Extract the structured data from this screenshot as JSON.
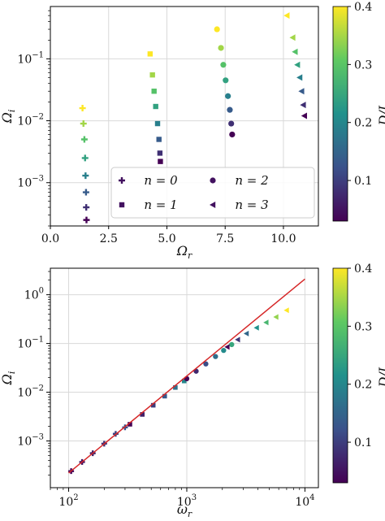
{
  "chart_data": [
    {
      "type": "scatter",
      "xlabel": "Ω_r",
      "ylabel": "Ω_i",
      "xlim": [
        0,
        11.5
      ],
      "ylim": [
        0.0002,
        0.7
      ],
      "yscale": "log",
      "grid": true,
      "x_ticks": [
        "0.0",
        "2.5",
        "5.0",
        "7.5",
        "10.0"
      ],
      "y_ticks": [
        {
          "base": "10",
          "exp": "−1",
          "value": 0.1
        },
        {
          "base": "10",
          "exp": "−2",
          "value": 0.01
        },
        {
          "base": "10",
          "exp": "−3",
          "value": 0.001
        }
      ],
      "legend": {
        "position": "lower-right",
        "entries": [
          {
            "label": "n = 0",
            "marker": "plus"
          },
          {
            "label": "n = 1",
            "marker": "square"
          },
          {
            "label": "n = 2",
            "marker": "circle"
          },
          {
            "label": "n = 3",
            "marker": "triangle-left"
          }
        ]
      },
      "colorbar": {
        "label": "D/L",
        "range": [
          0.03,
          0.4
        ],
        "ticks": [
          "0.1",
          "0.2",
          "0.3",
          "0.4"
        ],
        "colormap": "viridis"
      },
      "series": [
        {
          "name": "n = 0",
          "marker": "plus",
          "D_range": [
            0.03,
            0.4
          ],
          "points": [
            [
              1.55,
              0.00025
            ],
            [
              1.54,
              0.0004
            ],
            [
              1.53,
              0.0007
            ],
            [
              1.51,
              0.0013
            ],
            [
              1.49,
              0.0025
            ],
            [
              1.46,
              0.005
            ],
            [
              1.42,
              0.009
            ],
            [
              1.38,
              0.016
            ]
          ]
        },
        {
          "name": "n = 1",
          "marker": "square",
          "D_range": [
            0.03,
            0.4
          ],
          "points": [
            [
              4.72,
              0.0022
            ],
            [
              4.7,
              0.003
            ],
            [
              4.66,
              0.005
            ],
            [
              4.6,
              0.009
            ],
            [
              4.52,
              0.017
            ],
            [
              4.45,
              0.03
            ],
            [
              4.38,
              0.055
            ],
            [
              4.28,
              0.12
            ]
          ]
        },
        {
          "name": "n = 2",
          "marker": "circle",
          "D_range": [
            0.03,
            0.4
          ],
          "points": [
            [
              7.8,
              0.006
            ],
            [
              7.76,
              0.009
            ],
            [
              7.7,
              0.015
            ],
            [
              7.62,
              0.025
            ],
            [
              7.52,
              0.045
            ],
            [
              7.42,
              0.08
            ],
            [
              7.32,
              0.15
            ],
            [
              7.15,
              0.3
            ]
          ]
        },
        {
          "name": "n = 3",
          "marker": "triangle-left",
          "D_range": [
            0.03,
            0.4
          ],
          "points": [
            [
              10.9,
              0.012
            ],
            [
              10.85,
              0.018
            ],
            [
              10.78,
              0.03
            ],
            [
              10.7,
              0.05
            ],
            [
              10.6,
              0.08
            ],
            [
              10.5,
              0.13
            ],
            [
              10.4,
              0.22
            ],
            [
              10.15,
              0.5
            ]
          ]
        }
      ]
    },
    {
      "type": "scatter",
      "xlabel": "ω_r",
      "ylabel": "Ω_i",
      "xscale": "log",
      "yscale": "log",
      "xlim": [
        70,
        13000
      ],
      "ylim": [
        0.00011,
        3.5
      ],
      "grid": true,
      "x_ticks": [
        {
          "base": "10",
          "exp": "2",
          "value": 100
        },
        {
          "base": "10",
          "exp": "3",
          "value": 1000
        },
        {
          "base": "10",
          "exp": "4",
          "value": 10000
        }
      ],
      "y_ticks": [
        {
          "base": "10",
          "exp": "0",
          "value": 1
        },
        {
          "base": "10",
          "exp": "−1",
          "value": 0.1
        },
        {
          "base": "10",
          "exp": "−2",
          "value": 0.01
        },
        {
          "base": "10",
          "exp": "−3",
          "value": 0.001
        }
      ],
      "colorbar": {
        "label": "D/L",
        "range": [
          0.03,
          0.4
        ],
        "ticks": [
          "0.1",
          "0.2",
          "0.3",
          "0.4"
        ],
        "colormap": "viridis"
      },
      "fit_line": {
        "color": "#d62728",
        "points": [
          [
            100,
            0.00022
          ],
          [
            10000,
            2.1
          ]
        ]
      },
      "series": [
        {
          "name": "n = 0",
          "marker": "plus",
          "D_range": [
            0.03,
            0.12
          ],
          "points": [
            [
              105,
              0.00024
            ],
            [
              130,
              0.00037
            ],
            [
              160,
              0.00056
            ],
            [
              200,
              0.00088
            ],
            [
              250,
              0.0014
            ],
            [
              300,
              0.0019
            ]
          ]
        },
        {
          "name": "n = 1",
          "marker": "square",
          "D_range": [
            0.03,
            0.2
          ],
          "points": [
            [
              330,
              0.0022
            ],
            [
              420,
              0.0035
            ],
            [
              520,
              0.0054
            ],
            [
              650,
              0.0083
            ],
            [
              800,
              0.0125
            ],
            [
              950,
              0.017
            ]
          ]
        },
        {
          "name": "n = 2",
          "marker": "circle",
          "D_range": [
            0.03,
            0.25
          ],
          "points": [
            [
              1000,
              0.019
            ],
            [
              1200,
              0.027
            ],
            [
              1450,
              0.038
            ],
            [
              1750,
              0.054
            ],
            [
              2050,
              0.072
            ],
            [
              2400,
              0.095
            ]
          ]
        },
        {
          "name": "n = 3",
          "marker": "triangle-left",
          "D_range": [
            0.03,
            0.4
          ],
          "points": [
            [
              2200,
              0.085
            ],
            [
              2700,
              0.12
            ],
            [
              3200,
              0.16
            ],
            [
              3900,
              0.21
            ],
            [
              4700,
              0.27
            ],
            [
              5700,
              0.35
            ],
            [
              7000,
              0.48
            ]
          ]
        }
      ]
    }
  ]
}
